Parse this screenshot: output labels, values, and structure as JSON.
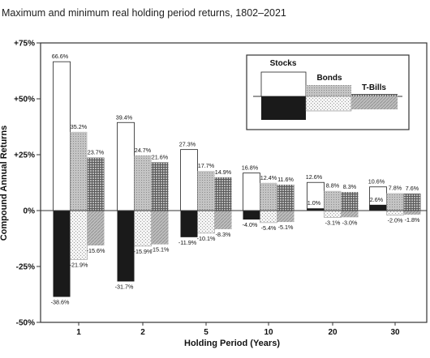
{
  "chart_data": {
    "type": "bar",
    "title": "Maximum and minimum real holding period returns, 1802–2021",
    "xlabel": "Holding Period (Years)",
    "ylabel": "Compound Annual Returns",
    "categories": [
      "1",
      "2",
      "5",
      "10",
      "20",
      "30"
    ],
    "y_ticks": [
      "+75%",
      "+50%",
      "+25%",
      "0%",
      "-25%",
      "-50%"
    ],
    "y_tick_values": [
      75,
      50,
      25,
      0,
      -25,
      -50
    ],
    "ylim": [
      -50,
      75
    ],
    "grid": false,
    "legend_position": "top-right",
    "series": [
      {
        "name": "Stocks",
        "max": [
          66.6,
          39.4,
          27.3,
          16.8,
          12.6,
          10.6
        ],
        "min": [
          -38.6,
          -31.7,
          -11.9,
          -4.0,
          1.0,
          2.6
        ],
        "max_labels": [
          "66.6%",
          "39.4%",
          "27.3%",
          "16.8%",
          "12.6%",
          "10.6%"
        ],
        "min_labels": [
          "-38.6%",
          "-31.7%",
          "-11.9%",
          "-4.0%",
          "1.0%",
          "2.6%"
        ]
      },
      {
        "name": "Bonds",
        "max": [
          35.2,
          24.7,
          17.7,
          12.4,
          8.8,
          7.8
        ],
        "min": [
          -21.9,
          -15.9,
          -10.1,
          -5.4,
          -3.1,
          -2.0
        ],
        "max_labels": [
          "35.2%",
          "24.7%",
          "17.7%",
          "12.4%",
          "8.8%",
          "7.8%"
        ],
        "min_labels": [
          "-21.9%",
          "-15.9%",
          "-10.1%",
          "-5.4%",
          "-3.1%",
          "-2.0%"
        ]
      },
      {
        "name": "T-Bills",
        "max": [
          23.7,
          21.6,
          14.9,
          11.6,
          8.3,
          7.6
        ],
        "min": [
          -15.6,
          -15.1,
          -8.3,
          -5.1,
          -3.0,
          -1.8
        ],
        "max_labels": [
          "23.7%",
          "21.6%",
          "14.9%",
          "11.6%",
          "8.3%",
          "7.6%"
        ],
        "min_labels": [
          "-15.6%",
          "-15.1%",
          "-8.3%",
          "-5.1%",
          "-3.0%",
          "-1.8%"
        ]
      }
    ]
  }
}
